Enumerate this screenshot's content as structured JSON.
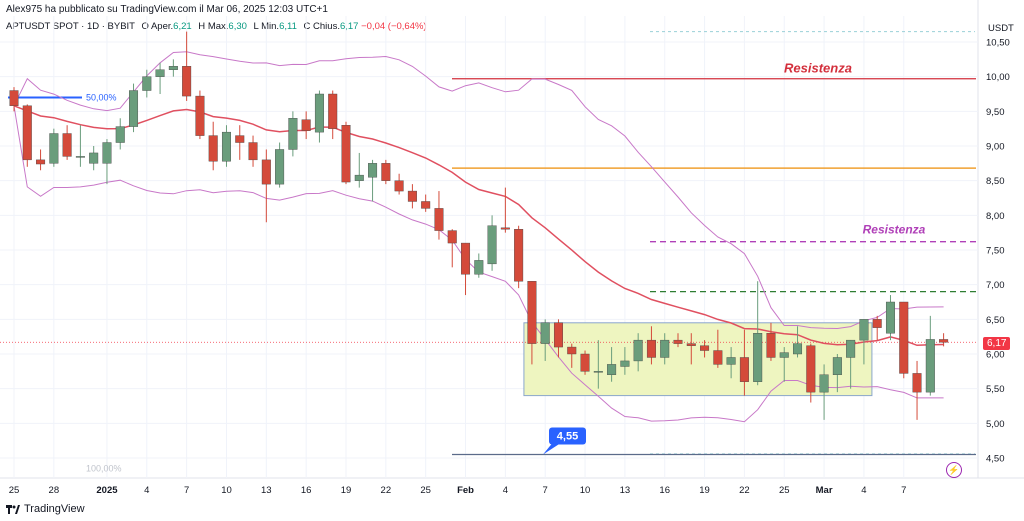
{
  "header": {
    "published": "Alex975 ha pubblicato su TradingView.com il Mar 06, 2025 12:03 UTC+1"
  },
  "symbol": {
    "name": "APTUSDT SPOT · 1D · BYBIT",
    "open_label": "O",
    "open_text": "Aper.",
    "open": "6,21",
    "high_label": "H",
    "high_text": "Max.",
    "high": "6,30",
    "low_label": "L",
    "low_text": "Min.",
    "low": "6,11",
    "close_label": "C",
    "close_text": "Chius.",
    "close": "6,17",
    "change": "−0,04 (−0,64%)"
  },
  "axis": {
    "currency": "USDT",
    "current_price": "6,17"
  },
  "annotations": {
    "fib_top": "50,00%",
    "fib_bottom": "100,00%",
    "resist_1": "Resistenza",
    "resist_2": "Resistenza",
    "support_callout": "4,55"
  },
  "branding": {
    "name": "TradingView"
  },
  "colors": {
    "bull": "#6a9d7c",
    "bear": "#d44a3a",
    "resistance_red": "#d32f3c",
    "resistance_orange": "#f0a030",
    "resistance_purple": "#b040b8",
    "support_green": "#2e7d32",
    "bollinger": "#c878c8",
    "ema": "#e05060",
    "box_fill": "#eef5c0",
    "box_border": "#8aa6cc"
  },
  "chart_data": {
    "type": "candlestick",
    "ylim": [
      4.3,
      10.8
    ],
    "y_ticks": [
      "10,50",
      "10,00",
      "9,50",
      "9,00",
      "8,50",
      "8,00",
      "7,50",
      "7,00",
      "6,50",
      "6,00",
      "5,50",
      "5,00",
      "4,50"
    ],
    "y_tick_values": [
      10.5,
      10.0,
      9.5,
      9.0,
      8.5,
      8.0,
      7.5,
      7.0,
      6.5,
      6.0,
      5.5,
      5.0,
      4.5
    ],
    "x_ticks": [
      "25",
      "28",
      "2025",
      "4",
      "7",
      "10",
      "13",
      "16",
      "19",
      "22",
      "25",
      "Feb",
      "4",
      "7",
      "10",
      "13",
      "16",
      "19",
      "22",
      "25",
      "Mar",
      "4",
      "7"
    ],
    "x_tick_index": [
      0,
      3,
      7,
      10,
      13,
      16,
      19,
      22,
      25,
      28,
      31,
      34,
      37,
      40,
      43,
      46,
      49,
      52,
      55,
      58,
      61,
      64,
      67
    ],
    "candles": [
      {
        "o": 9.8,
        "h": 9.85,
        "l": 9.5,
        "c": 9.58
      },
      {
        "o": 9.58,
        "h": 9.6,
        "l": 8.7,
        "c": 8.8
      },
      {
        "o": 8.8,
        "h": 8.95,
        "l": 8.65,
        "c": 8.74
      },
      {
        "o": 8.75,
        "h": 9.25,
        "l": 8.7,
        "c": 9.18
      },
      {
        "o": 9.18,
        "h": 9.3,
        "l": 8.8,
        "c": 8.85
      },
      {
        "o": 8.85,
        "h": 9.3,
        "l": 8.7,
        "c": 8.85
      },
      {
        "o": 8.75,
        "h": 9.0,
        "l": 8.65,
        "c": 8.9
      },
      {
        "o": 8.75,
        "h": 9.1,
        "l": 8.45,
        "c": 9.05
      },
      {
        "o": 9.05,
        "h": 9.4,
        "l": 8.95,
        "c": 9.28
      },
      {
        "o": 9.28,
        "h": 9.9,
        "l": 9.2,
        "c": 9.8
      },
      {
        "o": 9.8,
        "h": 10.1,
        "l": 9.7,
        "c": 10.0
      },
      {
        "o": 10.0,
        "h": 10.2,
        "l": 9.75,
        "c": 10.1
      },
      {
        "o": 10.1,
        "h": 10.25,
        "l": 10.0,
        "c": 10.15
      },
      {
        "o": 10.15,
        "h": 10.65,
        "l": 9.65,
        "c": 9.72
      },
      {
        "o": 9.72,
        "h": 9.8,
        "l": 9.1,
        "c": 9.15
      },
      {
        "o": 9.15,
        "h": 9.35,
        "l": 8.65,
        "c": 8.78
      },
      {
        "o": 8.78,
        "h": 9.3,
        "l": 8.7,
        "c": 9.2
      },
      {
        "o": 9.15,
        "h": 9.3,
        "l": 8.8,
        "c": 9.05
      },
      {
        "o": 9.05,
        "h": 9.15,
        "l": 8.7,
        "c": 8.8
      },
      {
        "o": 8.8,
        "h": 8.95,
        "l": 7.9,
        "c": 8.45
      },
      {
        "o": 8.45,
        "h": 9.05,
        "l": 8.4,
        "c": 8.95
      },
      {
        "o": 8.95,
        "h": 9.5,
        "l": 8.85,
        "c": 9.4
      },
      {
        "o": 9.38,
        "h": 9.5,
        "l": 9.1,
        "c": 9.22
      },
      {
        "o": 9.2,
        "h": 9.8,
        "l": 9.05,
        "c": 9.75
      },
      {
        "o": 9.75,
        "h": 9.8,
        "l": 9.1,
        "c": 9.25
      },
      {
        "o": 9.3,
        "h": 9.35,
        "l": 8.45,
        "c": 8.48
      },
      {
        "o": 8.5,
        "h": 8.9,
        "l": 8.4,
        "c": 8.58
      },
      {
        "o": 8.55,
        "h": 8.8,
        "l": 8.2,
        "c": 8.75
      },
      {
        "o": 8.75,
        "h": 8.8,
        "l": 8.45,
        "c": 8.5
      },
      {
        "o": 8.5,
        "h": 8.6,
        "l": 8.3,
        "c": 8.35
      },
      {
        "o": 8.35,
        "h": 8.45,
        "l": 8.1,
        "c": 8.2
      },
      {
        "o": 8.2,
        "h": 8.3,
        "l": 8.05,
        "c": 8.1
      },
      {
        "o": 8.1,
        "h": 8.35,
        "l": 7.65,
        "c": 7.78
      },
      {
        "o": 7.78,
        "h": 7.8,
        "l": 7.25,
        "c": 7.6
      },
      {
        "o": 7.6,
        "h": 7.6,
        "l": 6.85,
        "c": 7.15
      },
      {
        "o": 7.15,
        "h": 7.45,
        "l": 7.1,
        "c": 7.35
      },
      {
        "o": 7.3,
        "h": 8.0,
        "l": 7.2,
        "c": 7.85
      },
      {
        "o": 7.82,
        "h": 8.4,
        "l": 7.75,
        "c": 7.8
      },
      {
        "o": 7.8,
        "h": 7.85,
        "l": 6.95,
        "c": 7.05
      },
      {
        "o": 7.05,
        "h": 7.05,
        "l": 5.85,
        "c": 6.15
      },
      {
        "o": 6.15,
        "h": 6.5,
        "l": 5.9,
        "c": 6.45
      },
      {
        "o": 6.45,
        "h": 6.5,
        "l": 5.95,
        "c": 6.1
      },
      {
        "o": 6.1,
        "h": 6.15,
        "l": 5.8,
        "c": 6.0
      },
      {
        "o": 6.0,
        "h": 6.05,
        "l": 5.7,
        "c": 5.75
      },
      {
        "o": 5.75,
        "h": 6.2,
        "l": 5.5,
        "c": 5.75
      },
      {
        "o": 5.7,
        "h": 6.1,
        "l": 5.6,
        "c": 5.85
      },
      {
        "o": 5.82,
        "h": 6.1,
        "l": 5.7,
        "c": 5.9
      },
      {
        "o": 5.9,
        "h": 6.3,
        "l": 5.75,
        "c": 6.2
      },
      {
        "o": 6.2,
        "h": 6.4,
        "l": 5.85,
        "c": 5.95
      },
      {
        "o": 5.95,
        "h": 6.3,
        "l": 5.85,
        "c": 6.2
      },
      {
        "o": 6.2,
        "h": 6.3,
        "l": 6.1,
        "c": 6.15
      },
      {
        "o": 6.15,
        "h": 6.3,
        "l": 5.85,
        "c": 6.12
      },
      {
        "o": 6.12,
        "h": 6.2,
        "l": 5.95,
        "c": 6.05
      },
      {
        "o": 6.05,
        "h": 6.35,
        "l": 5.8,
        "c": 5.85
      },
      {
        "o": 5.85,
        "h": 6.1,
        "l": 5.65,
        "c": 5.95
      },
      {
        "o": 5.95,
        "h": 6.35,
        "l": 5.4,
        "c": 5.6
      },
      {
        "o": 5.6,
        "h": 7.05,
        "l": 5.55,
        "c": 6.3
      },
      {
        "o": 6.3,
        "h": 6.45,
        "l": 5.9,
        "c": 5.95
      },
      {
        "o": 5.95,
        "h": 6.1,
        "l": 5.6,
        "c": 6.02
      },
      {
        "o": 6.0,
        "h": 6.4,
        "l": 5.95,
        "c": 6.15
      },
      {
        "o": 6.12,
        "h": 6.15,
        "l": 5.3,
        "c": 5.45
      },
      {
        "o": 5.45,
        "h": 5.85,
        "l": 5.05,
        "c": 5.7
      },
      {
        "o": 5.7,
        "h": 6.0,
        "l": 5.45,
        "c": 5.95
      },
      {
        "o": 5.95,
        "h": 6.2,
        "l": 5.5,
        "c": 6.2
      },
      {
        "o": 6.2,
        "h": 6.5,
        "l": 5.85,
        "c": 6.5
      },
      {
        "o": 6.5,
        "h": 6.55,
        "l": 6.2,
        "c": 6.38
      },
      {
        "o": 6.3,
        "h": 6.85,
        "l": 6.2,
        "c": 6.75
      },
      {
        "o": 6.75,
        "h": 6.75,
        "l": 5.65,
        "c": 5.72
      },
      {
        "o": 5.72,
        "h": 5.9,
        "l": 5.05,
        "c": 5.45
      },
      {
        "o": 5.45,
        "h": 6.55,
        "l": 5.4,
        "c": 6.21
      },
      {
        "o": 6.21,
        "h": 6.3,
        "l": 6.11,
        "c": 6.17
      }
    ],
    "levels": {
      "resistance_red": 9.97,
      "resistance_orange": 8.68,
      "resistance_purple": 7.62,
      "green_dashed": 6.9,
      "support": 4.55,
      "fib_top": 9.7,
      "fib_bottom": 4.35,
      "dotted_top": 10.65
    },
    "range_box": {
      "start_index": 39,
      "end_index": 64,
      "top": 6.45,
      "bottom": 5.4
    }
  }
}
